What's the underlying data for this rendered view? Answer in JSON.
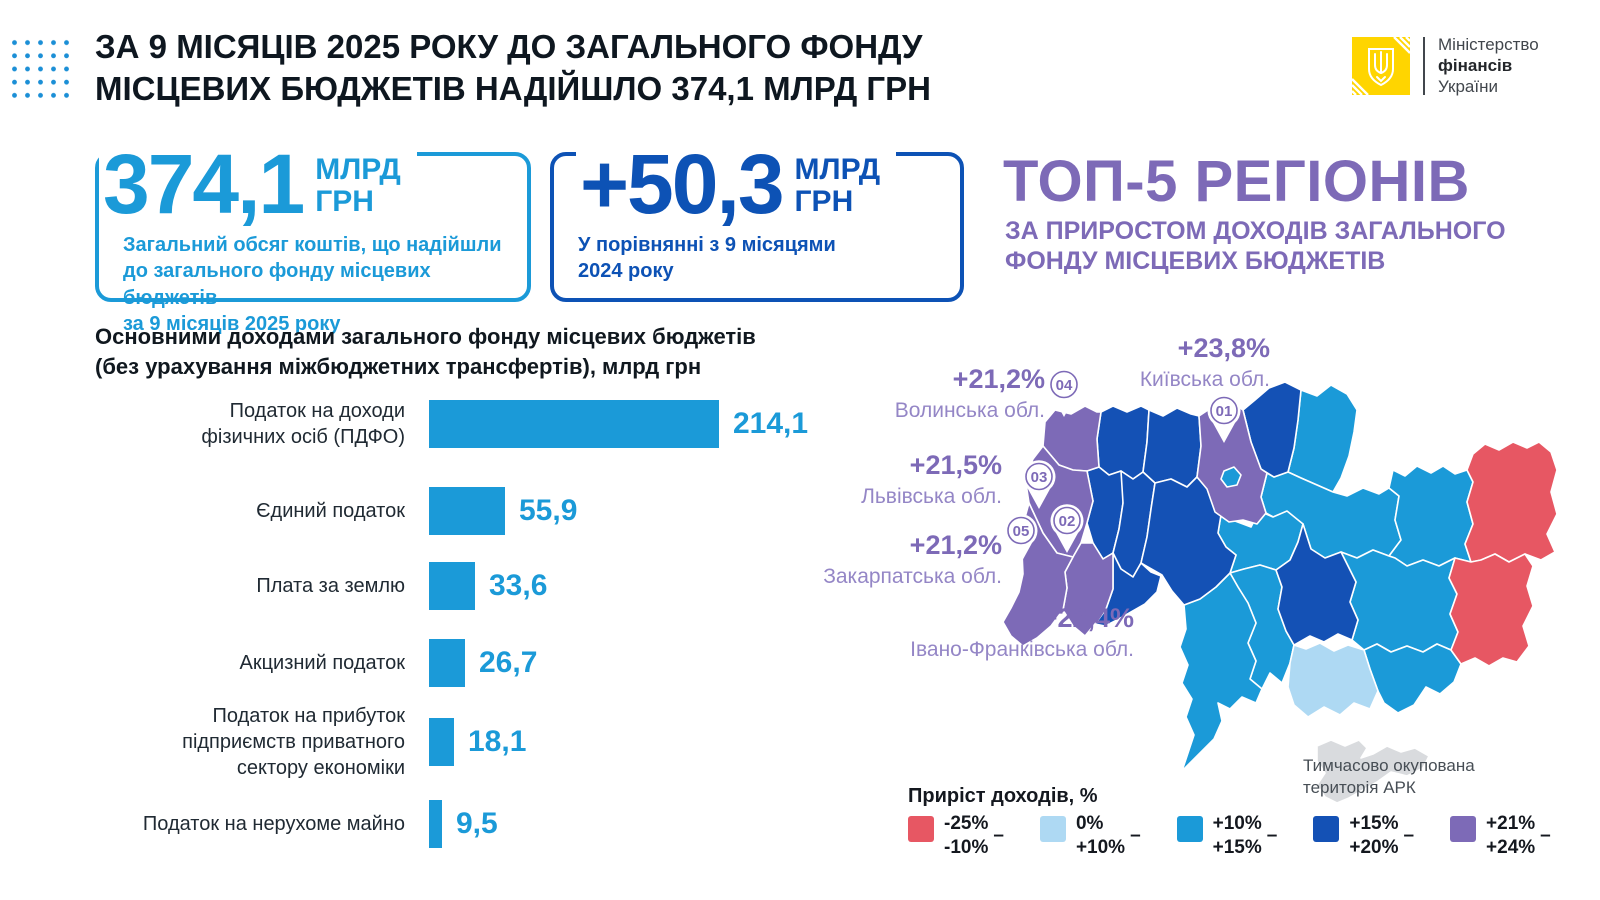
{
  "header": {
    "title": "ЗА 9 МІСЯЦІВ 2025 РОКУ ДО ЗАГАЛЬНОГО ФОНДУ\nМІСЦЕВИХ БЮДЖЕТІВ НАДІЙШЛО 374,1 МЛРД ГРН",
    "dots_color": "#1b8fd6"
  },
  "logo": {
    "line1": "Міністерство",
    "line2": "фінансів",
    "line3": "України"
  },
  "stat_cards": [
    {
      "value": "374,1",
      "unit": "МЛРД\nГРН",
      "description": "Загальний обсяг коштів, що надійшли\nдо загального фонду місцевих бюджетів\nза 9 місяців 2025 року",
      "accent": "#1b9ad8"
    },
    {
      "value": "+50,3",
      "unit": "МЛРД\nГРН",
      "description": "У порівнянні з 9 місяцями\n2024 року",
      "accent": "#0d52b5"
    }
  ],
  "top5": {
    "title": "ТОП-5 РЕГІОНІВ",
    "subtitle": "ЗА ПРИРОСТОМ ДОХОДІВ ЗАГАЛЬНОГО\nФОНДУ МІСЦЕВИХ БЮДЖЕТІВ"
  },
  "chart_data": {
    "type": "bar",
    "orientation": "horizontal",
    "title": "Основними доходами загального фонду місцевих бюджетів\n(без урахування міжбюджетних трансфертів), млрд грн",
    "unit": "млрд грн",
    "categories": [
      "Податок на доходи\nфізичних осіб (ПДФО)",
      "Єдиний податок",
      "Плата за землю",
      "Акцизний податок",
      "Податок на прибуток\nпідприємств приватного\nсектору економіки",
      "Податок на нерухоме майно"
    ],
    "values": [
      214.1,
      55.9,
      33.6,
      26.7,
      18.1,
      9.5
    ],
    "value_labels": [
      "214,1",
      "55,9",
      "33,6",
      "26,7",
      "18,1",
      "9,5"
    ],
    "xlim": [
      0,
      214.1
    ],
    "bar_color": "#1b9ad8"
  },
  "map": {
    "pins": [
      {
        "num": "01",
        "pct": "+23,8%",
        "name": "Київська обл."
      },
      {
        "num": "02",
        "pct": "+22,4%",
        "name": "Івано-Франківська обл."
      },
      {
        "num": "03",
        "pct": "+21,5%",
        "name": "Львівська обл."
      },
      {
        "num": "04",
        "pct": "+21,2%",
        "name": "Волинська обл."
      },
      {
        "num": "05",
        "pct": "+21,2%",
        "name": "Закарпатська обл."
      }
    ],
    "note": "Тимчасово окупована\nтериторія АРК",
    "palette": {
      "medium": "#1b9ad8",
      "dark": "#1451b5",
      "purple": "#7d6ab7",
      "purple_light": "#9486c6",
      "light": "#aed9f3",
      "red": "#e75763",
      "gray": "#d9dbde",
      "yellow": "#ffd500"
    },
    "regions": {
      "volyn": "purple",
      "rivne": "dark",
      "zhytomyr": "dark",
      "kyiv_oblast": "purple",
      "chernihiv": "dark",
      "sumy": "medium",
      "lviv": "purple",
      "ternopil": "dark",
      "khmelnytskyi": "dark",
      "vinnytsia": "dark",
      "cherkasy": "medium",
      "poltava": "medium",
      "kharkiv": "medium",
      "luhansk": "red",
      "donetsk": "red",
      "zakarpattia": "purple",
      "ivano_frankivsk": "purple",
      "chernivtsi": "dark",
      "kirovohrad": "dark",
      "dnipro": "medium",
      "zaporizhzhia": "medium",
      "mykolaiv": "medium",
      "odesa": "medium",
      "kherson": "light",
      "crimea": "gray",
      "kyiv_city": "medium"
    },
    "legend": {
      "title": "Приріст доходів, %",
      "dash": "–",
      "items": [
        {
          "from": "-25%",
          "to": "-10%",
          "color": "red"
        },
        {
          "from": "0%",
          "to": "+10%",
          "color": "light"
        },
        {
          "from": "+10%",
          "to": "+15%",
          "color": "medium"
        },
        {
          "from": "+15%",
          "to": "+20%",
          "color": "dark"
        },
        {
          "from": "+21%",
          "to": "+24%",
          "color": "purple"
        }
      ]
    }
  }
}
